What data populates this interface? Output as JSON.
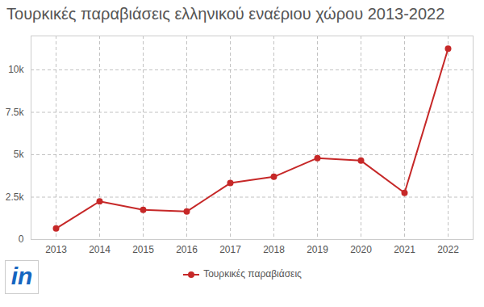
{
  "chart_data": {
    "type": "line",
    "title": "Τουρκικές παραβιάσεις ελληνικού εναέριου χώρου 2013-2022",
    "categories": [
      "2013",
      "2014",
      "2015",
      "2016",
      "2017",
      "2018",
      "2019",
      "2020",
      "2021",
      "2022"
    ],
    "series": [
      {
        "name": "Τουρκικές παραβιάσεις",
        "color": "#c62828",
        "marker": "circle",
        "values": [
          650,
          2250,
          1750,
          1650,
          3330,
          3700,
          4800,
          4650,
          2750,
          11250
        ]
      }
    ],
    "ylim": [
      0,
      12000
    ],
    "yticks": [
      0,
      {
        "value": 2500,
        "label": "2.5k"
      },
      {
        "value": 5000,
        "label": "5k"
      },
      {
        "value": 7500,
        "label": "7.5k"
      },
      {
        "value": 10000,
        "label": "10k"
      }
    ],
    "grid": true,
    "legend": "bottom",
    "logo": "in"
  }
}
